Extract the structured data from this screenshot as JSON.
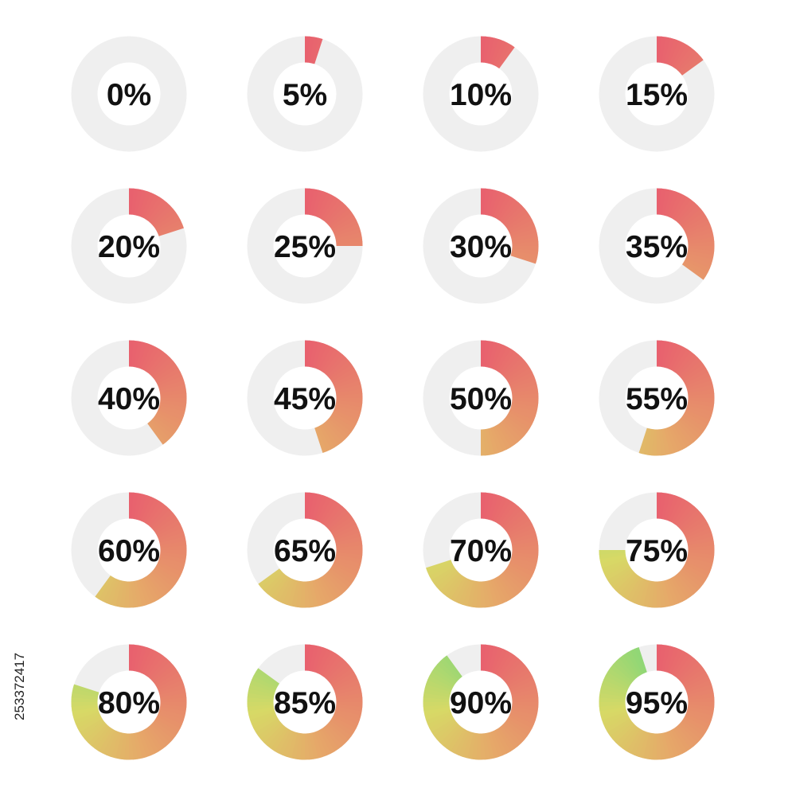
{
  "ring_colors": {
    "track": "#efefef",
    "gradient_start": "#e8606e",
    "gradient_middle": "#e6a769",
    "gradient_late": "#d7d966",
    "gradient_end": "#7fd67a"
  },
  "indicators": [
    {
      "label": "0%",
      "value": 0
    },
    {
      "label": "5%",
      "value": 5
    },
    {
      "label": "10%",
      "value": 10
    },
    {
      "label": "15%",
      "value": 15
    },
    {
      "label": "20%",
      "value": 20
    },
    {
      "label": "25%",
      "value": 25
    },
    {
      "label": "30%",
      "value": 30
    },
    {
      "label": "35%",
      "value": 35
    },
    {
      "label": "40%",
      "value": 40
    },
    {
      "label": "45%",
      "value": 45
    },
    {
      "label": "50%",
      "value": 50
    },
    {
      "label": "55%",
      "value": 55
    },
    {
      "label": "60%",
      "value": 60
    },
    {
      "label": "65%",
      "value": 65
    },
    {
      "label": "70%",
      "value": 70
    },
    {
      "label": "75%",
      "value": 75
    },
    {
      "label": "80%",
      "value": 80
    },
    {
      "label": "85%",
      "value": 85
    },
    {
      "label": "90%",
      "value": 90
    },
    {
      "label": "95%",
      "value": 95
    }
  ],
  "stock_id": "253372417"
}
